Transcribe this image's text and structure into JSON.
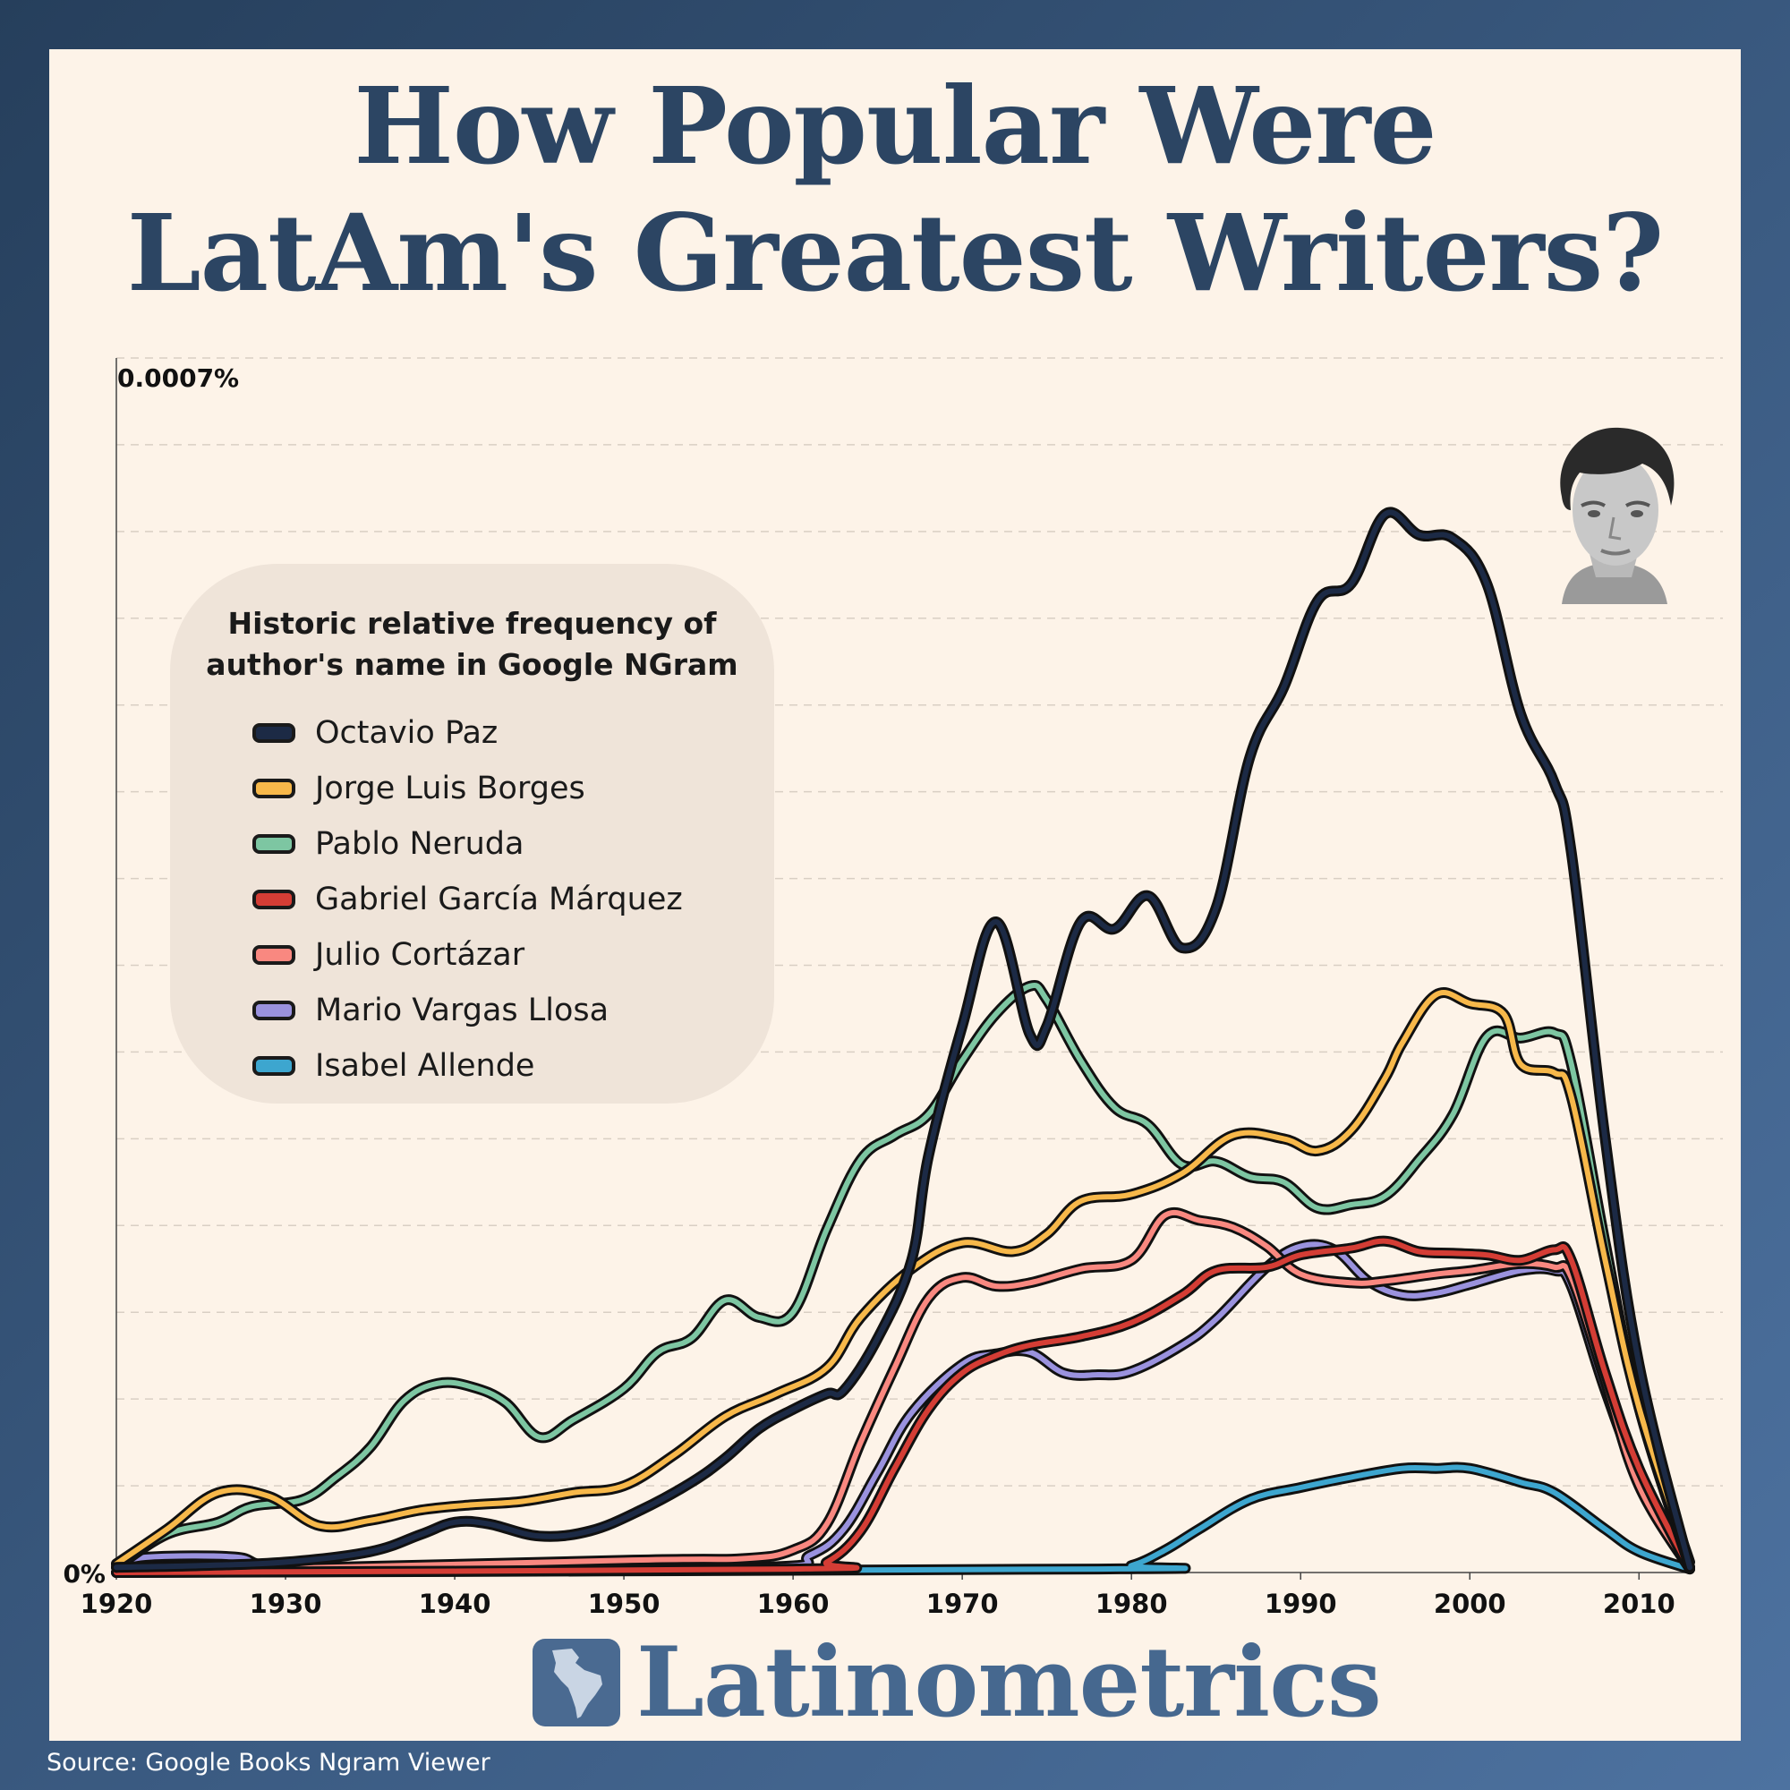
{
  "title": {
    "line1": "How Popular Were",
    "line2": "LatAm's Greatest Writers?"
  },
  "legend": {
    "title_line1": "Historic relative frequency of",
    "title_line2": "author's name in Google NGram"
  },
  "brand": "Latinometrics",
  "source": "Source: Google Books Ngram Viewer",
  "chart_data": {
    "type": "line",
    "ylabel_top": "0.0007%",
    "ylabel_bottom": "0%",
    "ylim": [
      0,
      0.0007
    ],
    "xlim": [
      1920,
      2013
    ],
    "xticks": [
      1920,
      1930,
      1940,
      1950,
      1960,
      1970,
      1980,
      1990,
      2000,
      2010
    ],
    "grid": "horizontal dashed",
    "legend_position": "left",
    "series": [
      {
        "name": "Octavio Paz",
        "color": "#1c2a45",
        "points": [
          [
            1920,
            3e-06
          ],
          [
            1925,
            4e-06
          ],
          [
            1930,
            6e-06
          ],
          [
            1935,
            1.2e-05
          ],
          [
            1938,
            2.2e-05
          ],
          [
            1940,
            2.9e-05
          ],
          [
            1942,
            2.8e-05
          ],
          [
            1945,
            2.1e-05
          ],
          [
            1948,
            2.4e-05
          ],
          [
            1951,
            3.6e-05
          ],
          [
            1954,
            5.2e-05
          ],
          [
            1956,
            6.6e-05
          ],
          [
            1958,
            8.3e-05
          ],
          [
            1960,
            9.4e-05
          ],
          [
            1962,
            0.000103
          ],
          [
            1963,
            0.000105
          ],
          [
            1965,
            0.000135
          ],
          [
            1967,
            0.00018
          ],
          [
            1968,
            0.00024
          ],
          [
            1970,
            0.000315
          ],
          [
            1972,
            0.000375
          ],
          [
            1974,
            0.00031
          ],
          [
            1975,
            0.000315
          ],
          [
            1977,
            0.000375
          ],
          [
            1979,
            0.000371
          ],
          [
            1981,
            0.00039
          ],
          [
            1983,
            0.00036
          ],
          [
            1985,
            0.000383
          ],
          [
            1987,
            0.00047
          ],
          [
            1989,
            0.00051
          ],
          [
            1991,
            0.00056
          ],
          [
            1993,
            0.00057
          ],
          [
            1995,
            0.00061
          ],
          [
            1997,
            0.000598
          ],
          [
            1999,
            0.000596
          ],
          [
            2001,
            0.00057
          ],
          [
            2003,
            0.000495
          ],
          [
            2005,
            0.000455
          ],
          [
            2006,
            0.000415
          ],
          [
            2008,
            0.00025
          ],
          [
            2010,
            0.00012
          ],
          [
            2013,
            3e-06
          ]
        ]
      },
      {
        "name": "Jorge Luis Borges",
        "color": "#f7b84a",
        "points": [
          [
            1920,
            5e-06
          ],
          [
            1923,
            2.5e-05
          ],
          [
            1926,
            4.6e-05
          ],
          [
            1929,
            4.4e-05
          ],
          [
            1932,
            2.7e-05
          ],
          [
            1935,
            3e-05
          ],
          [
            1938,
            3.6e-05
          ],
          [
            1941,
            3.9e-05
          ],
          [
            1944,
            4.1e-05
          ],
          [
            1947,
            4.6e-05
          ],
          [
            1950,
            5e-05
          ],
          [
            1953,
            6.8e-05
          ],
          [
            1956,
            9e-05
          ],
          [
            1959,
            0.000103
          ],
          [
            1962,
            0.000118
          ],
          [
            1964,
            0.000147
          ],
          [
            1967,
            0.000175
          ],
          [
            1970,
            0.00019
          ],
          [
            1973,
            0.000185
          ],
          [
            1975,
            0.000195
          ],
          [
            1977,
            0.000214
          ],
          [
            1980,
            0.000218
          ],
          [
            1983,
            0.00023
          ],
          [
            1986,
            0.000252
          ],
          [
            1989,
            0.00025
          ],
          [
            1991,
            0.000243
          ],
          [
            1993,
            0.000255
          ],
          [
            1995,
            0.000285
          ],
          [
            1996,
            0.000305
          ],
          [
            1998,
            0.000333
          ],
          [
            2000,
            0.000328
          ],
          [
            2002,
            0.000322
          ],
          [
            2003,
            0.000293
          ],
          [
            2005,
            0.000288
          ],
          [
            2006,
            0.000274
          ],
          [
            2008,
            0.00018
          ],
          [
            2010,
            9.5e-05
          ],
          [
            2013,
            6e-06
          ]
        ]
      },
      {
        "name": "Pablo Neruda",
        "color": "#7dc6a2",
        "points": [
          [
            1920,
            3e-06
          ],
          [
            1923,
            2.2e-05
          ],
          [
            1926,
            2.9e-05
          ],
          [
            1928,
            3.8e-05
          ],
          [
            1931,
            4.2e-05
          ],
          [
            1933,
            5.5e-05
          ],
          [
            1935,
            7.2e-05
          ],
          [
            1937,
            9.9e-05
          ],
          [
            1939,
            0.000109
          ],
          [
            1941,
            0.000107
          ],
          [
            1943,
            9.8e-05
          ],
          [
            1945,
            7.8e-05
          ],
          [
            1947,
            8.8e-05
          ],
          [
            1950,
            0.000106
          ],
          [
            1952,
            0.000127
          ],
          [
            1954,
            0.000135
          ],
          [
            1956,
            0.000157
          ],
          [
            1958,
            0.000147
          ],
          [
            1960,
            0.00015
          ],
          [
            1962,
            0.000198
          ],
          [
            1964,
            0.000238
          ],
          [
            1966,
            0.000252
          ],
          [
            1968,
            0.000264
          ],
          [
            1970,
            0.000295
          ],
          [
            1972,
            0.000322
          ],
          [
            1974,
            0.000338
          ],
          [
            1975,
            0.00033
          ],
          [
            1977,
            0.000295
          ],
          [
            1979,
            0.000268
          ],
          [
            1981,
            0.000258
          ],
          [
            1983,
            0.000235
          ],
          [
            1985,
            0.000237
          ],
          [
            1987,
            0.000228
          ],
          [
            1989,
            0.000225
          ],
          [
            1991,
            0.00021
          ],
          [
            1993,
            0.000212
          ],
          [
            1995,
            0.000217
          ],
          [
            1997,
            0.000238
          ],
          [
            1999,
            0.000264
          ],
          [
            2001,
            0.000309
          ],
          [
            2003,
            0.000308
          ],
          [
            2005,
            0.000311
          ],
          [
            2006,
            0.000293
          ],
          [
            2008,
            0.00019
          ],
          [
            2010,
            9.5e-05
          ],
          [
            2013,
            3e-06
          ]
        ]
      },
      {
        "name": "Gabriel García Márquez",
        "color": "#d43d35",
        "points": [
          [
            1920,
            0.0
          ],
          [
            1960,
            2e-06
          ],
          [
            1962,
            6e-06
          ],
          [
            1964,
            2.4e-05
          ],
          [
            1966,
            6e-05
          ],
          [
            1968,
            9.4e-05
          ],
          [
            1970,
            0.000115
          ],
          [
            1972,
            0.000125
          ],
          [
            1974,
            0.000131
          ],
          [
            1977,
            0.000136
          ],
          [
            1980,
            0.000144
          ],
          [
            1983,
            0.00016
          ],
          [
            1985,
            0.000174
          ],
          [
            1988,
            0.000176
          ],
          [
            1990,
            0.000183
          ],
          [
            1993,
            0.000187
          ],
          [
            1995,
            0.000191
          ],
          [
            1997,
            0.000185
          ],
          [
            1999,
            0.000184
          ],
          [
            2001,
            0.000183
          ],
          [
            2003,
            0.00018
          ],
          [
            2005,
            0.000186
          ],
          [
            2006,
            0.00018
          ],
          [
            2008,
            0.000115
          ],
          [
            2010,
            6e-05
          ],
          [
            2013,
            2e-06
          ]
        ]
      },
      {
        "name": "Julio Cortázar",
        "color": "#f98880",
        "points": [
          [
            1920,
            0.0
          ],
          [
            1950,
            7e-06
          ],
          [
            1957,
            8e-06
          ],
          [
            1960,
            1.3e-05
          ],
          [
            1962,
            2.8e-05
          ],
          [
            1964,
            7.5e-05
          ],
          [
            1966,
            0.000118
          ],
          [
            1968,
            0.000158
          ],
          [
            1970,
            0.00017
          ],
          [
            1972,
            0.000165
          ],
          [
            1974,
            0.000167
          ],
          [
            1977,
            0.000175
          ],
          [
            1980,
            0.00018
          ],
          [
            1982,
            0.000206
          ],
          [
            1984,
            0.000203
          ],
          [
            1986,
            0.000199
          ],
          [
            1988,
            0.000188
          ],
          [
            1990,
            0.000172
          ],
          [
            1993,
            0.000167
          ],
          [
            1995,
            0.000168
          ],
          [
            1998,
            0.000172
          ],
          [
            2000,
            0.000174
          ],
          [
            2003,
            0.000178
          ],
          [
            2005,
            0.000176
          ],
          [
            2006,
            0.00017
          ],
          [
            2008,
            0.00011
          ],
          [
            2010,
            5e-05
          ],
          [
            2013,
            2e-06
          ]
        ]
      },
      {
        "name": "Mario Vargas Llosa",
        "color": "#9a92de",
        "points": [
          [
            1920,
            5e-06
          ],
          [
            1922,
            9e-06
          ],
          [
            1927,
            9e-06
          ],
          [
            1929,
            4e-06
          ],
          [
            1935,
            3e-06
          ],
          [
            1958,
            3e-06
          ],
          [
            1961,
            1e-05
          ],
          [
            1963,
            2.5e-05
          ],
          [
            1965,
            5.8e-05
          ],
          [
            1967,
            9.2e-05
          ],
          [
            1970,
            0.00012
          ],
          [
            1972,
            0.000126
          ],
          [
            1974,
            0.000127
          ],
          [
            1976,
            0.000115
          ],
          [
            1978,
            0.000114
          ],
          [
            1980,
            0.000116
          ],
          [
            1983,
            0.000131
          ],
          [
            1985,
            0.000146
          ],
          [
            1988,
            0.000176
          ],
          [
            1990,
            0.000188
          ],
          [
            1992,
            0.000186
          ],
          [
            1994,
            0.000168
          ],
          [
            1996,
            0.00016
          ],
          [
            1998,
            0.000161
          ],
          [
            2000,
            0.000166
          ],
          [
            2003,
            0.000174
          ],
          [
            2005,
            0.000174
          ],
          [
            2006,
            0.000165
          ],
          [
            2008,
            0.000105
          ],
          [
            2010,
            5.5e-05
          ],
          [
            2013,
            3e-06
          ]
        ]
      },
      {
        "name": "Isabel Allende",
        "color": "#3da6cf",
        "points": [
          [
            1920,
            0.0
          ],
          [
            1978,
            2e-06
          ],
          [
            1980,
            4e-06
          ],
          [
            1982,
            1.3e-05
          ],
          [
            1984,
            2.5e-05
          ],
          [
            1987,
            4.2e-05
          ],
          [
            1990,
            4.9e-05
          ],
          [
            1993,
            5.5e-05
          ],
          [
            1996,
            6e-05
          ],
          [
            1998,
            6e-05
          ],
          [
            2000,
            6e-05
          ],
          [
            2003,
            5.2e-05
          ],
          [
            2005,
            4.6e-05
          ],
          [
            2008,
            2.5e-05
          ],
          [
            2010,
            1.2e-05
          ],
          [
            2013,
            2e-06
          ]
        ]
      }
    ]
  }
}
